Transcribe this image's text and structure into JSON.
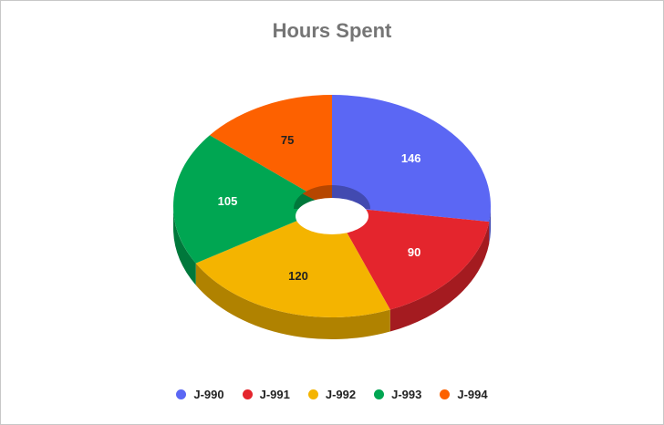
{
  "chart_data": {
    "type": "pie",
    "title": "Hours Spent",
    "legend_position": "bottom",
    "donut": true,
    "three_d": true,
    "slices": [
      {
        "label": "J-990",
        "value": 146,
        "color": "#5b67f4",
        "label_color": "#ffffff"
      },
      {
        "label": "J-991",
        "value": 90,
        "color": "#e4252d",
        "label_color": "#ffffff"
      },
      {
        "label": "J-992",
        "value": 120,
        "color": "#f4b400",
        "label_color": "#222222"
      },
      {
        "label": "J-993",
        "value": 105,
        "color": "#00a652",
        "label_color": "#ffffff"
      },
      {
        "label": "J-994",
        "value": 75,
        "color": "#fd6100",
        "label_color": "#222222"
      }
    ]
  }
}
